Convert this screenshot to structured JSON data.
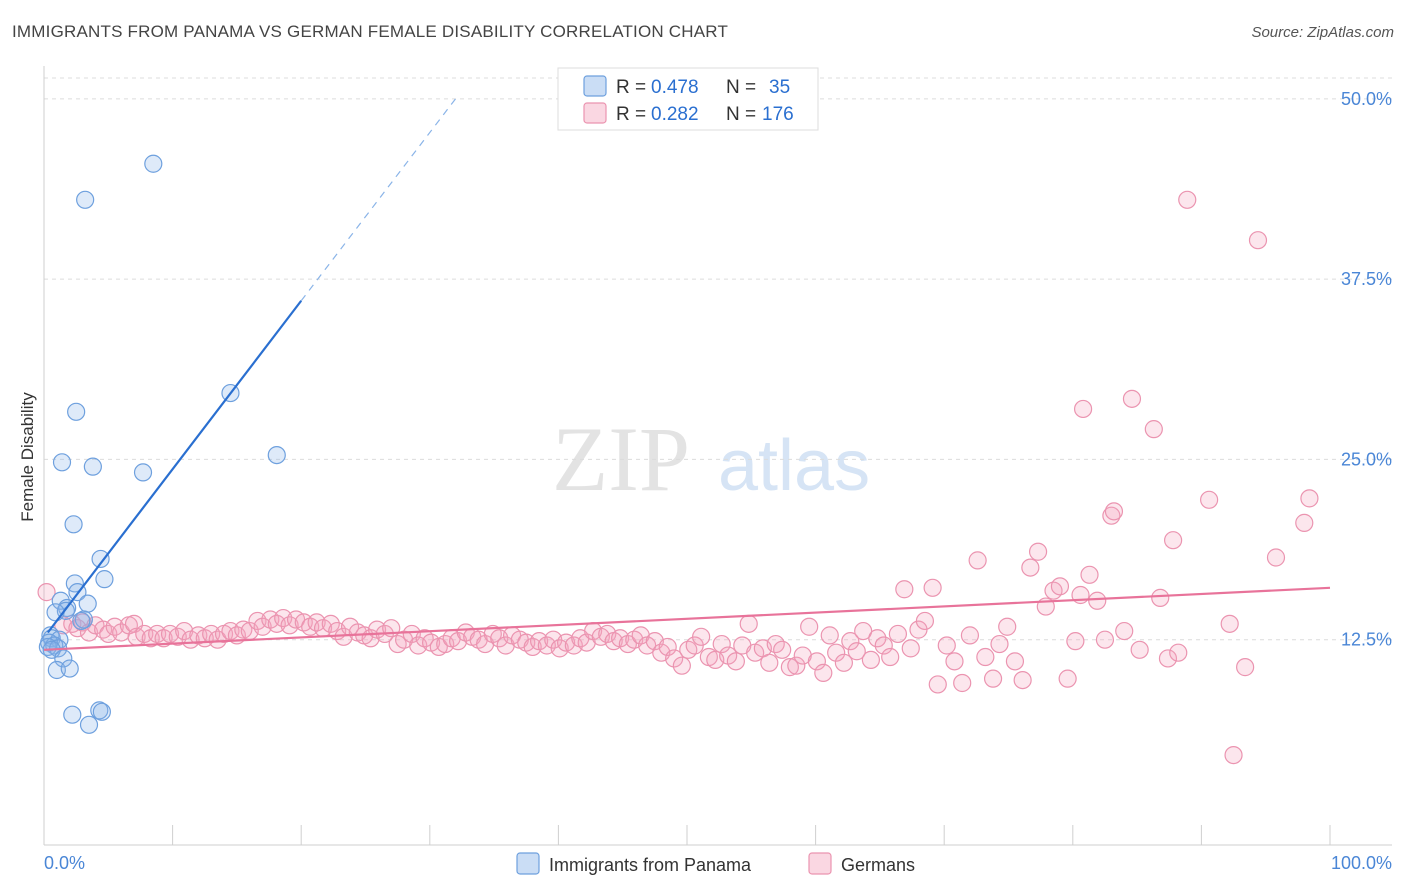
{
  "header": {
    "title": "IMMIGRANTS FROM PANAMA VS GERMAN FEMALE DISABILITY CORRELATION CHART",
    "source": "Source: ZipAtlas.com"
  },
  "watermark": {
    "zip": "ZIP",
    "atlas": "atlas"
  },
  "chart_data": {
    "type": "scatter",
    "title": "IMMIGRANTS FROM PANAMA VS GERMAN FEMALE DISABILITY CORRELATION CHART",
    "xlabel": "",
    "ylabel": "Female Disability",
    "xlim": [
      0,
      100
    ],
    "ylim": [
      0,
      52
    ],
    "x_tick_labels": {
      "min": "0.0%",
      "max": "100.0%"
    },
    "y_ticks": [
      {
        "value": 12.5,
        "label": "12.5%"
      },
      {
        "value": 25.0,
        "label": "25.0%"
      },
      {
        "value": 37.5,
        "label": "37.5%"
      },
      {
        "value": 50.0,
        "label": "50.0%"
      }
    ],
    "grid": true,
    "legend_position": "top-center",
    "series": [
      {
        "name": "Immigrants from Panama",
        "color": "#8ab4e8",
        "line_color": "#2a6fd0",
        "stats": {
          "r_label": "R =",
          "r_value": "0.478",
          "n_label": "N =",
          "n_value": "35"
        },
        "trend": {
          "x0": 0.3,
          "y0": 13.0,
          "x1": 20.0,
          "y1": 36.0,
          "dash_x1": 32.0,
          "dash_y1": 50.0
        },
        "points": [
          [
            8.5,
            45.5
          ],
          [
            3.2,
            43.0
          ],
          [
            2.5,
            28.3
          ],
          [
            1.4,
            24.8
          ],
          [
            3.8,
            24.5
          ],
          [
            7.7,
            24.1
          ],
          [
            14.5,
            29.6
          ],
          [
            18.1,
            25.3
          ],
          [
            2.3,
            20.5
          ],
          [
            4.4,
            18.1
          ],
          [
            4.7,
            16.7
          ],
          [
            2.4,
            16.4
          ],
          [
            2.6,
            15.8
          ],
          [
            1.3,
            15.2
          ],
          [
            3.4,
            15.0
          ],
          [
            1.8,
            14.7
          ],
          [
            1.7,
            14.5
          ],
          [
            0.9,
            14.4
          ],
          [
            3.1,
            13.9
          ],
          [
            2.9,
            13.8
          ],
          [
            0.5,
            12.8
          ],
          [
            0.6,
            12.6
          ],
          [
            1.2,
            12.5
          ],
          [
            0.4,
            12.3
          ],
          [
            0.8,
            12.1
          ],
          [
            0.3,
            12.0
          ],
          [
            1.1,
            11.9
          ],
          [
            0.6,
            11.8
          ],
          [
            1.5,
            11.2
          ],
          [
            1.0,
            10.4
          ],
          [
            2.0,
            10.5
          ],
          [
            4.3,
            7.6
          ],
          [
            4.5,
            7.5
          ],
          [
            2.2,
            7.3
          ],
          [
            3.5,
            6.6
          ]
        ]
      },
      {
        "name": "Germans",
        "color": "#f4a7be",
        "line_color": "#e8739a",
        "stats": {
          "r_label": "R =",
          "r_value": "0.282",
          "n_label": "N =",
          "n_value": "176"
        },
        "trend": {
          "x0": 0,
          "y0": 11.8,
          "x1": 100,
          "y1": 16.1
        },
        "points": [
          [
            0.2,
            15.8
          ],
          [
            1.5,
            13.5
          ],
          [
            2.2,
            13.6
          ],
          [
            2.6,
            13.3
          ],
          [
            3.0,
            13.7
          ],
          [
            3.5,
            13.0
          ],
          [
            4.0,
            13.5
          ],
          [
            4.6,
            13.2
          ],
          [
            5.0,
            12.9
          ],
          [
            5.5,
            13.4
          ],
          [
            6.0,
            13.0
          ],
          [
            6.6,
            13.5
          ],
          [
            7.0,
            13.6
          ],
          [
            7.2,
            12.7
          ],
          [
            7.8,
            12.9
          ],
          [
            8.3,
            12.6
          ],
          [
            8.8,
            12.9
          ],
          [
            9.3,
            12.6
          ],
          [
            9.8,
            12.9
          ],
          [
            10.4,
            12.7
          ],
          [
            10.9,
            13.1
          ],
          [
            11.4,
            12.5
          ],
          [
            12.0,
            12.8
          ],
          [
            12.5,
            12.6
          ],
          [
            13.0,
            12.9
          ],
          [
            13.5,
            12.5
          ],
          [
            14.0,
            12.9
          ],
          [
            14.5,
            13.1
          ],
          [
            15.0,
            12.8
          ],
          [
            15.5,
            13.2
          ],
          [
            16.0,
            13.1
          ],
          [
            16.6,
            13.8
          ],
          [
            17.0,
            13.4
          ],
          [
            17.6,
            13.9
          ],
          [
            18.1,
            13.6
          ],
          [
            18.6,
            14.0
          ],
          [
            19.1,
            13.5
          ],
          [
            19.6,
            13.9
          ],
          [
            20.2,
            13.7
          ],
          [
            20.7,
            13.4
          ],
          [
            21.2,
            13.7
          ],
          [
            21.7,
            13.3
          ],
          [
            22.3,
            13.6
          ],
          [
            22.8,
            13.1
          ],
          [
            23.3,
            12.7
          ],
          [
            23.8,
            13.4
          ],
          [
            24.4,
            13.0
          ],
          [
            24.9,
            12.8
          ],
          [
            25.4,
            12.6
          ],
          [
            25.9,
            13.2
          ],
          [
            26.5,
            12.9
          ],
          [
            27.0,
            13.3
          ],
          [
            27.5,
            12.2
          ],
          [
            28.0,
            12.5
          ],
          [
            28.6,
            12.9
          ],
          [
            29.1,
            12.1
          ],
          [
            29.6,
            12.6
          ],
          [
            30.1,
            12.3
          ],
          [
            30.7,
            12.0
          ],
          [
            31.2,
            12.2
          ],
          [
            31.7,
            12.6
          ],
          [
            32.2,
            12.4
          ],
          [
            32.8,
            13.0
          ],
          [
            33.3,
            12.7
          ],
          [
            33.8,
            12.5
          ],
          [
            34.3,
            12.2
          ],
          [
            34.9,
            12.9
          ],
          [
            35.4,
            12.6
          ],
          [
            35.9,
            12.1
          ],
          [
            36.4,
            12.8
          ],
          [
            37.0,
            12.5
          ],
          [
            37.5,
            12.3
          ],
          [
            38.0,
            12.0
          ],
          [
            38.5,
            12.4
          ],
          [
            39.1,
            12.1
          ],
          [
            39.6,
            12.5
          ],
          [
            40.1,
            11.9
          ],
          [
            40.6,
            12.3
          ],
          [
            41.2,
            12.1
          ],
          [
            41.7,
            12.6
          ],
          [
            42.2,
            12.3
          ],
          [
            42.7,
            13.1
          ],
          [
            43.3,
            12.7
          ],
          [
            43.8,
            12.9
          ],
          [
            44.3,
            12.4
          ],
          [
            44.8,
            12.6
          ],
          [
            45.4,
            12.2
          ],
          [
            45.9,
            12.5
          ],
          [
            46.4,
            12.8
          ],
          [
            46.9,
            12.1
          ],
          [
            47.5,
            12.4
          ],
          [
            48.0,
            11.6
          ],
          [
            48.5,
            12.0
          ],
          [
            49.0,
            11.2
          ],
          [
            49.6,
            10.7
          ],
          [
            50.1,
            11.8
          ],
          [
            50.6,
            12.1
          ],
          [
            51.1,
            12.7
          ],
          [
            51.7,
            11.3
          ],
          [
            52.2,
            11.1
          ],
          [
            52.7,
            12.2
          ],
          [
            53.2,
            11.4
          ],
          [
            53.8,
            11.0
          ],
          [
            54.3,
            12.1
          ],
          [
            54.8,
            13.6
          ],
          [
            55.3,
            11.6
          ],
          [
            55.9,
            11.9
          ],
          [
            56.4,
            10.9
          ],
          [
            56.9,
            12.2
          ],
          [
            57.4,
            11.8
          ],
          [
            58.0,
            10.6
          ],
          [
            58.5,
            10.7
          ],
          [
            59.0,
            11.4
          ],
          [
            59.5,
            13.4
          ],
          [
            60.1,
            11.0
          ],
          [
            60.6,
            10.2
          ],
          [
            61.1,
            12.8
          ],
          [
            61.6,
            11.6
          ],
          [
            62.2,
            10.9
          ],
          [
            62.7,
            12.4
          ],
          [
            63.2,
            11.7
          ],
          [
            63.7,
            13.1
          ],
          [
            64.3,
            11.1
          ],
          [
            64.8,
            12.6
          ],
          [
            65.3,
            12.1
          ],
          [
            65.8,
            11.3
          ],
          [
            66.4,
            12.9
          ],
          [
            66.9,
            16.0
          ],
          [
            67.4,
            11.9
          ],
          [
            68.0,
            13.2
          ],
          [
            68.5,
            13.8
          ],
          [
            69.1,
            16.1
          ],
          [
            69.5,
            9.4
          ],
          [
            70.2,
            12.1
          ],
          [
            70.8,
            11.0
          ],
          [
            71.4,
            9.5
          ],
          [
            72.0,
            12.8
          ],
          [
            72.6,
            18.0
          ],
          [
            73.2,
            11.3
          ],
          [
            73.8,
            9.8
          ],
          [
            74.3,
            12.2
          ],
          [
            74.9,
            13.4
          ],
          [
            75.5,
            11.0
          ],
          [
            76.1,
            9.7
          ],
          [
            76.7,
            17.5
          ],
          [
            77.3,
            18.6
          ],
          [
            77.9,
            14.8
          ],
          [
            78.5,
            15.9
          ],
          [
            79.0,
            16.2
          ],
          [
            79.6,
            9.8
          ],
          [
            80.2,
            12.4
          ],
          [
            80.6,
            15.6
          ],
          [
            80.8,
            28.5
          ],
          [
            81.3,
            17.0
          ],
          [
            81.9,
            15.2
          ],
          [
            82.5,
            12.5
          ],
          [
            83.0,
            21.1
          ],
          [
            83.2,
            21.4
          ],
          [
            84.0,
            13.1
          ],
          [
            84.6,
            29.2
          ],
          [
            85.2,
            11.8
          ],
          [
            86.3,
            27.1
          ],
          [
            86.8,
            15.4
          ],
          [
            87.4,
            11.2
          ],
          [
            87.8,
            19.4
          ],
          [
            88.2,
            11.6
          ],
          [
            88.9,
            43.0
          ],
          [
            90.6,
            22.2
          ],
          [
            92.2,
            13.6
          ],
          [
            92.5,
            4.5
          ],
          [
            93.4,
            10.6
          ],
          [
            94.4,
            40.2
          ],
          [
            95.8,
            18.2
          ],
          [
            98.0,
            20.6
          ],
          [
            98.4,
            22.3
          ]
        ]
      }
    ]
  }
}
